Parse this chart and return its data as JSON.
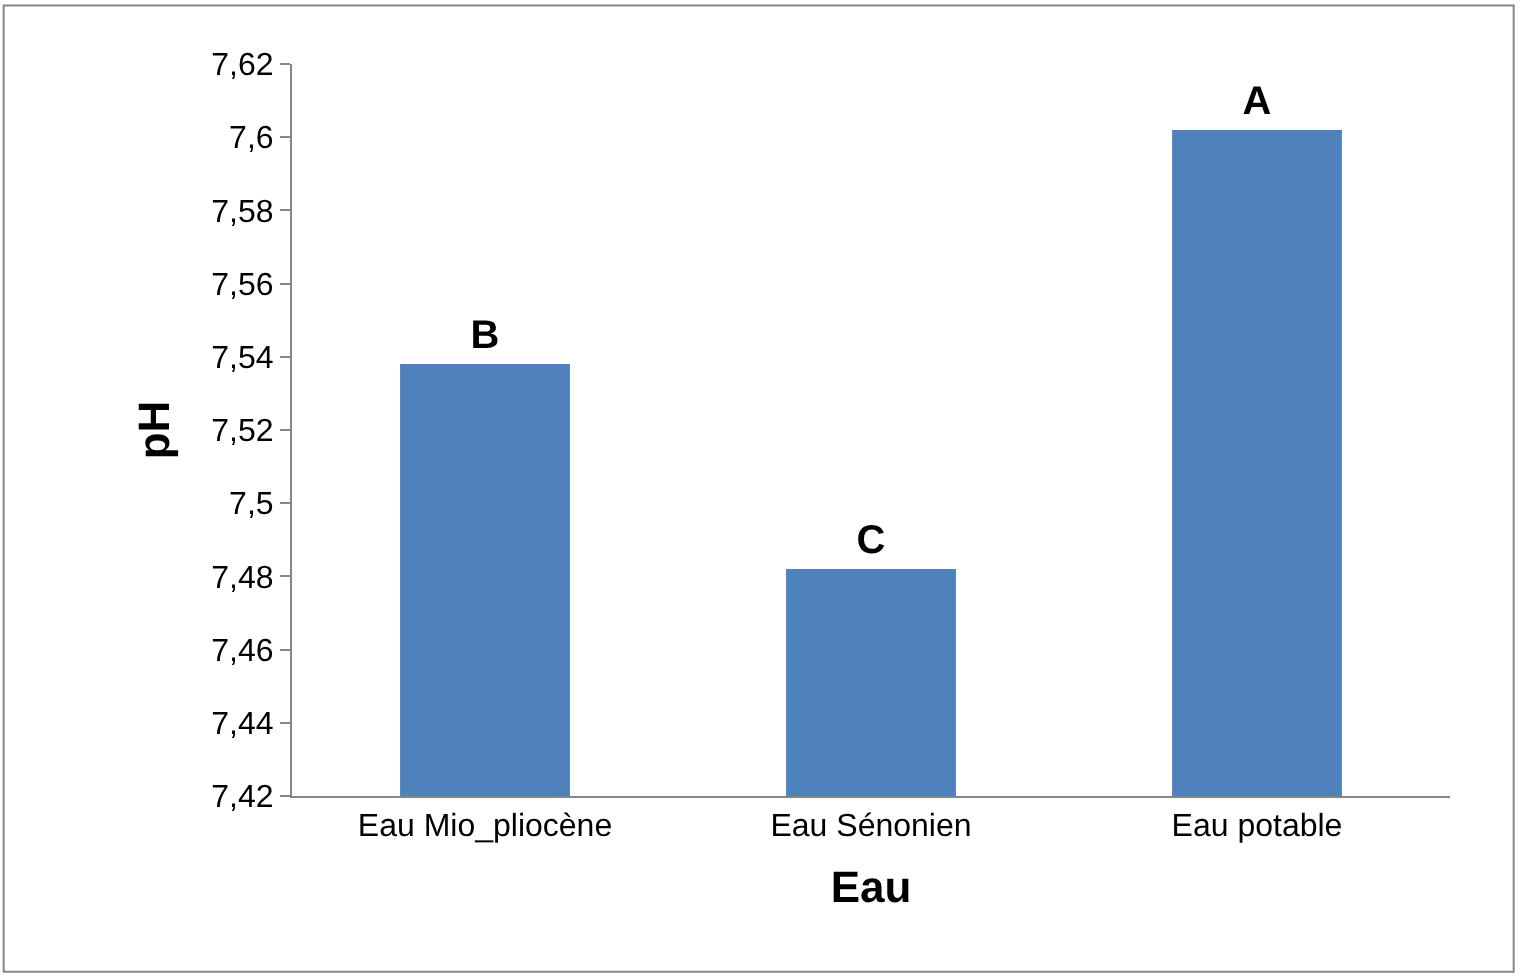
{
  "chart_data": {
    "type": "bar",
    "xlabel": "Eau",
    "ylabel": "pH",
    "categories": [
      "Eau Mio_pliocène",
      "Eau Sénonien",
      "Eau potable"
    ],
    "values": [
      7.538,
      7.482,
      7.602
    ],
    "value_labels": [
      "B",
      "C",
      "A"
    ],
    "color": "#4f81bd",
    "ylim": [
      7.42,
      7.62
    ],
    "yticks": [
      {
        "value": 7.42,
        "label": "7,42"
      },
      {
        "value": 7.44,
        "label": "7,44"
      },
      {
        "value": 7.46,
        "label": "7,46"
      },
      {
        "value": 7.48,
        "label": "7,48"
      },
      {
        "value": 7.5,
        "label": "7,5"
      },
      {
        "value": 7.52,
        "label": "7,52"
      },
      {
        "value": 7.54,
        "label": "7,54"
      },
      {
        "value": 7.56,
        "label": "7,56"
      },
      {
        "value": 7.58,
        "label": "7,58"
      },
      {
        "value": 7.6,
        "label": "7,6"
      },
      {
        "value": 7.62,
        "label": "7,62"
      }
    ],
    "legend": false
  }
}
